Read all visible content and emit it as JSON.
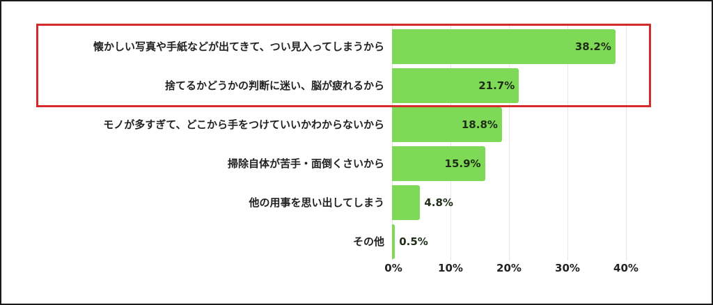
{
  "chart_data": {
    "type": "bar",
    "orientation": "horizontal",
    "title": "",
    "xlabel": "",
    "ylabel": "",
    "categories": [
      "懐かしい写真や手紙などが出てきて、つい見入ってしまうから",
      "捨てるかどうかの判断に迷い、脳が疲れるから",
      "モノが多すぎて、どこから手をつけていいかわからないから",
      "掃除自体が苦手・面倒くさいから",
      "他の用事を思い出してしまう",
      "その他"
    ],
    "values": [
      38.2,
      21.7,
      18.8,
      15.9,
      4.8,
      0.5
    ],
    "value_labels": [
      "38.2%",
      "21.7%",
      "18.8%",
      "15.9%",
      "4.8%",
      "0.5%"
    ],
    "xlim": [
      0,
      40
    ],
    "x_ticks": [
      "0%",
      "10%",
      "20%",
      "30%",
      "40%"
    ],
    "grid": true,
    "legend": null,
    "bar_color": "#7ed957",
    "highlight": {
      "rows": [
        0,
        1
      ],
      "color": "#d42a2a"
    }
  }
}
